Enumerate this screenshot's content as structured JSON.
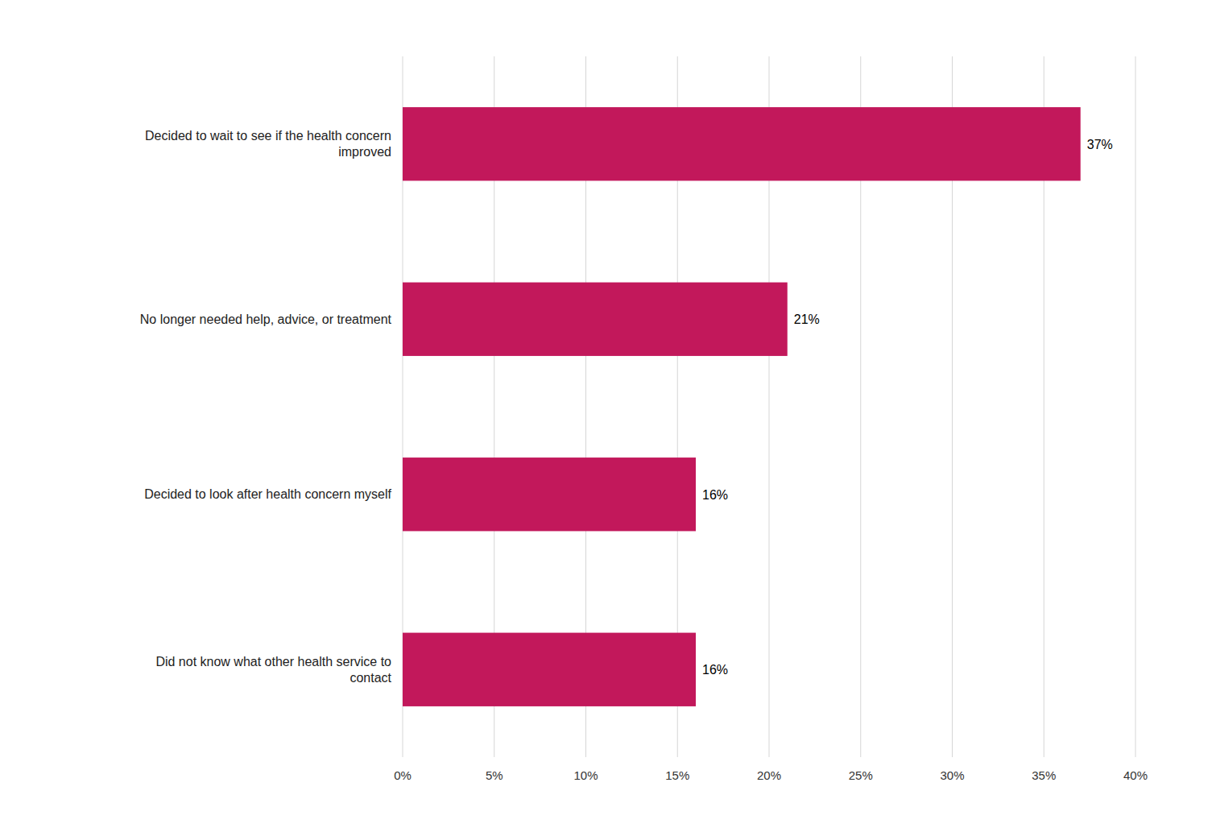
{
  "chart_data": {
    "type": "bar",
    "orientation": "horizontal",
    "categories": [
      "Did not know what other health service to\ncontact",
      "Decided to look after health concern myself",
      "No longer needed help, advice, or treatment",
      "Decided to wait to see if the health concern\nimproved"
    ],
    "values": [
      16,
      16,
      21,
      37
    ],
    "value_labels": [
      "16%",
      "16%",
      "21%",
      "37%"
    ],
    "data_labels": true,
    "color": "#c2185b",
    "xlim": [
      0,
      40
    ],
    "xticks": [
      {
        "value": 0,
        "label": "0%"
      },
      {
        "value": 5,
        "label": "5%"
      },
      {
        "value": 10,
        "label": "10%"
      },
      {
        "value": 15,
        "label": "15%"
      },
      {
        "value": 20,
        "label": "20%"
      },
      {
        "value": 25,
        "label": "25%"
      },
      {
        "value": 30,
        "label": "30%"
      },
      {
        "value": 35,
        "label": "35%"
      },
      {
        "value": 40,
        "label": "40%"
      }
    ],
    "grid": true
  }
}
